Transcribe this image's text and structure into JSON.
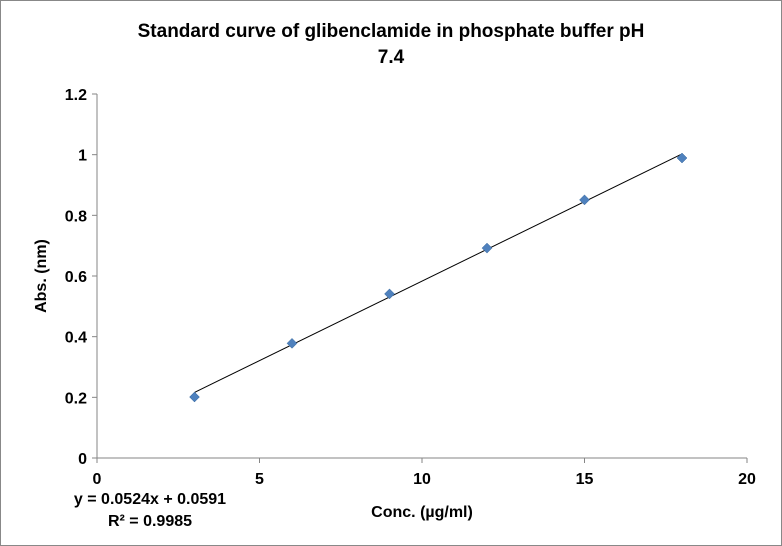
{
  "chart_data": {
    "type": "scatter",
    "title_line1": "Standard curve of glibenclamide in phosphate buffer pH",
    "title_line2": "7.4",
    "xlabel": "Conc. (µg/ml)",
    "ylabel": "Abs. (nm)",
    "xlim": [
      0,
      20
    ],
    "ylim": [
      0,
      1.2
    ],
    "xticks": [
      "0",
      "5",
      "10",
      "15",
      "20"
    ],
    "yticks": [
      "0",
      "0.2",
      "0.4",
      "0.6",
      "0.8",
      "1",
      "1.2"
    ],
    "grid": false,
    "series": [
      {
        "name": "Absorbance",
        "color": "#4F81BD",
        "x": [
          3,
          6,
          9,
          12,
          15,
          18
        ],
        "y": [
          0.201,
          0.378,
          0.541,
          0.692,
          0.851,
          0.989
        ]
      }
    ],
    "trendline": {
      "slope": 0.0524,
      "intercept": 0.0591,
      "x_range": [
        3,
        18
      ],
      "color": "#000000"
    },
    "equation": "y = 0.0524x + 0.0591",
    "r_squared": "R² = 0.9985"
  }
}
